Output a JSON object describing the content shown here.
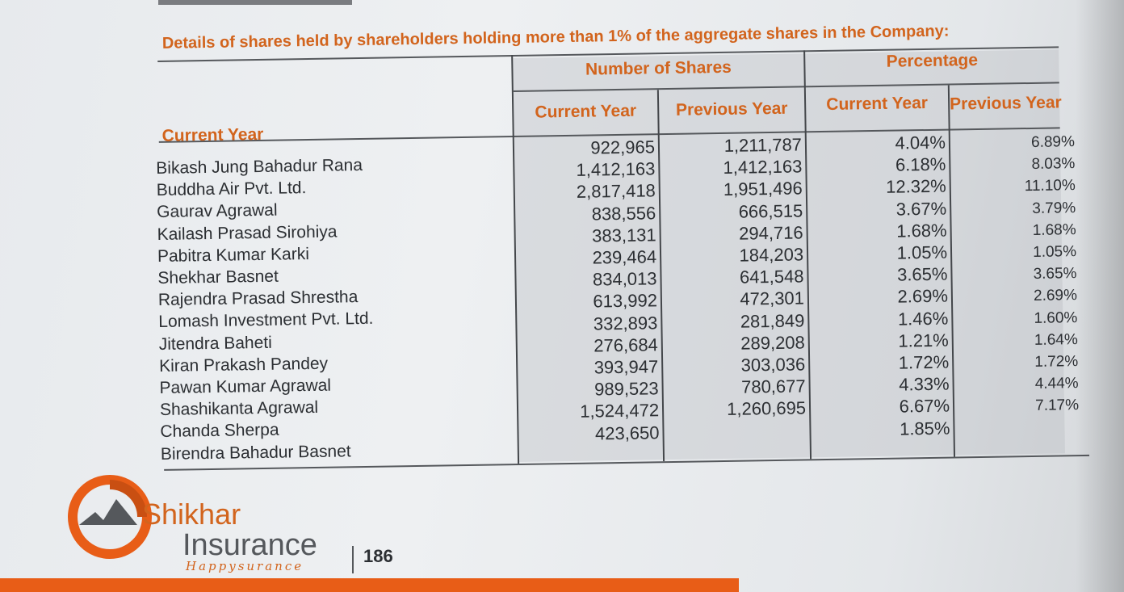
{
  "title": "Details of shares held by shareholders holding more than 1% of the aggregate shares in the Company:",
  "table": {
    "row_header": "Current Year",
    "group_headers": [
      "Number of Shares",
      "Percentage"
    ],
    "sub_headers": [
      "Current Year",
      "Previous Year",
      "Current Year",
      "Previous Year"
    ],
    "names": [
      "Bikash Jung Bahadur Rana",
      "Buddha Air Pvt. Ltd.",
      "Gaurav Agrawal",
      "Kailash Prasad Sirohiya",
      "Pabitra Kumar Karki",
      "Shekhar Basnet",
      "Rajendra Prasad Shrestha",
      "Lomash Investment Pvt. Ltd.",
      "Jitendra Baheti",
      "Kiran Prakash Pandey",
      "Pawan Kumar Agrawal",
      "Shashikanta Agrawal",
      "Chanda Sherpa",
      "Birendra Bahadur Basnet"
    ],
    "shares_current": [
      "922,965",
      "1,412,163",
      "2,817,418",
      "838,556",
      "383,131",
      "239,464",
      "834,013",
      "613,992",
      "332,893",
      "276,684",
      "393,947",
      "989,523",
      "1,524,472",
      "423,650"
    ],
    "shares_previous": [
      "1,211,787",
      "1,412,163",
      "1,951,496",
      "666,515",
      "294,716",
      "184,203",
      "641,548",
      "472,301",
      "281,849",
      "289,208",
      "303,036",
      "780,677",
      "1,260,695"
    ],
    "pct_current": [
      "4.04%",
      "6.18%",
      "12.32%",
      "3.67%",
      "1.68%",
      "1.05%",
      "3.65%",
      "2.69%",
      "1.46%",
      "1.21%",
      "1.72%",
      "4.33%",
      "6.67%",
      "1.85%"
    ],
    "pct_previous": [
      "6.89%",
      "8.03%",
      "11.10%",
      "3.79%",
      "1.68%",
      "1.05%",
      "3.65%",
      "2.69%",
      "1.60%",
      "1.64%",
      "1.72%",
      "4.44%",
      "7.17%"
    ]
  },
  "footer": {
    "logo_part1": "Shikhar",
    "logo_part2": "Insurance",
    "tagline": "Happysurance",
    "page_number": "186"
  },
  "colors": {
    "accent": "#d2641d",
    "bar": "#e85d17",
    "text": "#2c2f33"
  }
}
